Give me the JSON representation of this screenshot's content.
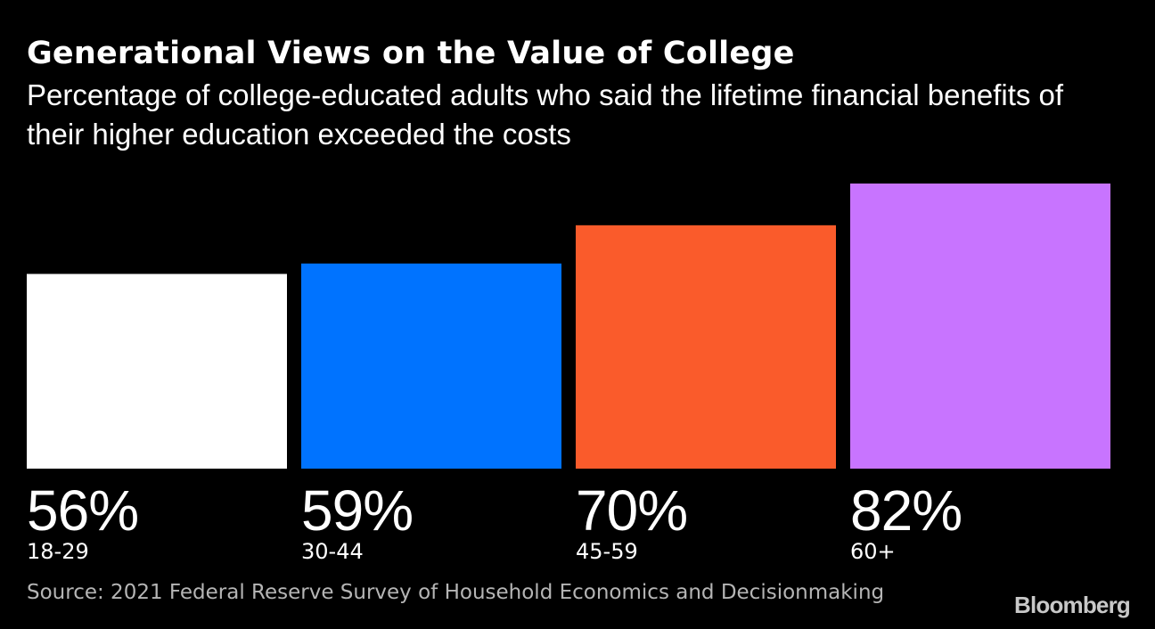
{
  "chart_data": {
    "type": "bar",
    "title": "Generational Views on the Value of College",
    "subtitle": "Percentage of college-educated adults who said the lifetime financial benefits of their higher education exceeded the costs",
    "categories": [
      "18-29",
      "30-44",
      "45-59",
      "60+"
    ],
    "values": [
      56,
      59,
      70,
      82
    ],
    "value_labels": [
      "56%",
      "59%",
      "70%",
      "82%"
    ],
    "colors": [
      "#ffffff",
      "#0073ff",
      "#fa5b2b",
      "#c874ff"
    ],
    "ylim": [
      0,
      82
    ],
    "xlabel": "",
    "ylabel": "",
    "grid": false
  },
  "source": "Source: 2021 Federal Reserve Survey of Household Economics and Decisionmaking",
  "logo": "Bloomberg"
}
